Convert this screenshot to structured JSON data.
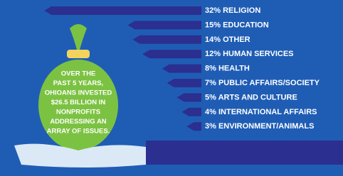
{
  "chart_data": {
    "type": "bar",
    "orientation": "horizontal",
    "categories": [
      "RELIGION",
      "EDUCATION",
      "OTHER",
      "HUMAN SERVICES",
      "HEALTH",
      "PUBLIC AFFAIRS/SOCIETY",
      "ARTS AND CULTURE",
      "INTERNATIONAL AFFAIRS",
      "ENVIRONMENT/ANIMALS"
    ],
    "values": [
      32,
      15,
      14,
      12,
      8,
      7,
      5,
      4,
      3
    ],
    "value_labels": [
      "32%",
      "15%",
      "14%",
      "12%",
      "8%",
      "7%",
      "5%",
      "4%",
      "3%"
    ],
    "color": "#2b2f8f",
    "annotation": [
      "OVER THE",
      "PAST 5 YEARS,",
      "OHIOANS INVESTED",
      "$26.5 BILLION IN",
      "NONPROFITS",
      "ADDRESSING AN",
      "ARRAY OF ISSUES."
    ]
  }
}
